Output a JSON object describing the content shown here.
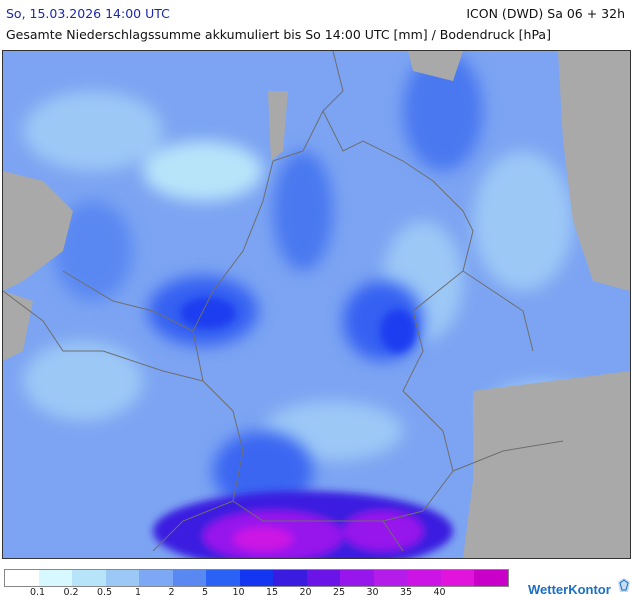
{
  "header": {
    "date": "So, 15.03.2026 14:00 UTC",
    "model": "ICON (DWD) Sa 06 + 32h",
    "title": "Gesamte Niederschlagssumme akkumuliert bis So 14:00 UTC [mm] / Bodendruck [hPa]"
  },
  "legend": {
    "colors": [
      "#ffffff",
      "#d8f8ff",
      "#b8e4fa",
      "#9cc8f6",
      "#7ca8f4",
      "#5a88f2",
      "#2a62f6",
      "#1436f0",
      "#3a1ce0",
      "#6a14e8",
      "#9616ec",
      "#b41cea",
      "#cc14e4",
      "#e014da",
      "#c800c8"
    ],
    "labels": [
      "0.1",
      "0.2",
      "0.5",
      "1",
      "2",
      "5",
      "10",
      "15",
      "20",
      "25",
      "30",
      "35",
      "40"
    ]
  },
  "map": {
    "sea_color": "#7fa0f0",
    "land_outside_color": "#a9a9a9",
    "border_color": "#6e6e6e"
  },
  "brand": {
    "name": "WetterKontor",
    "color": "#1a6fc4",
    "icon": "wetterkontor-logo-icon"
  }
}
